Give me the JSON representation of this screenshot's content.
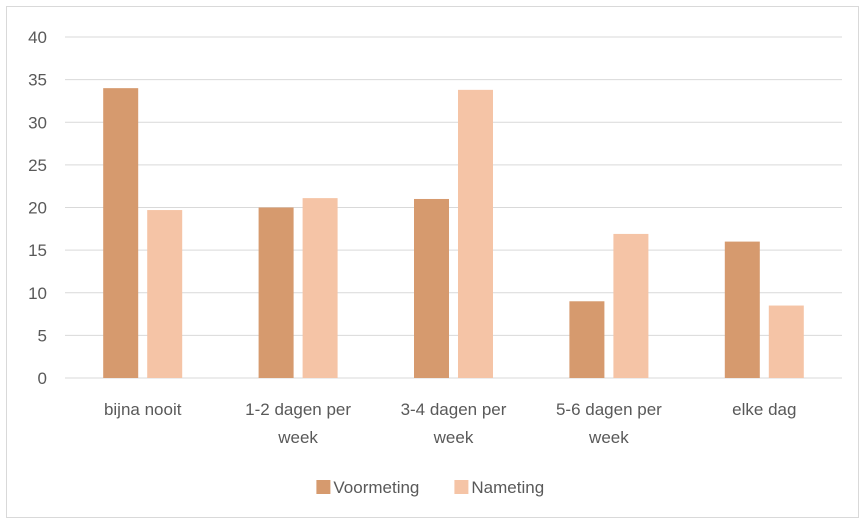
{
  "chart_data": {
    "type": "bar",
    "title": "",
    "xlabel": "",
    "ylabel": "",
    "categories": [
      [
        "bijna nooit"
      ],
      [
        "1-2 dagen per",
        "week"
      ],
      [
        "3-4 dagen per",
        "week"
      ],
      [
        "5-6 dagen per",
        "week"
      ],
      [
        "elke dag"
      ]
    ],
    "series": [
      {
        "name": "Voormeting",
        "color": "#d69a6e",
        "values": [
          34,
          20,
          21,
          9,
          16
        ]
      },
      {
        "name": "Nameting",
        "color": "#f5c4a6",
        "values": [
          19.7,
          21.1,
          33.8,
          16.9,
          8.5
        ]
      }
    ],
    "ylim": [
      0,
      40
    ],
    "yticks": [
      0,
      5,
      10,
      15,
      20,
      25,
      30,
      35,
      40
    ],
    "grid": true,
    "gridline_color": "#d9d9d9",
    "legend_position": "bottom"
  }
}
